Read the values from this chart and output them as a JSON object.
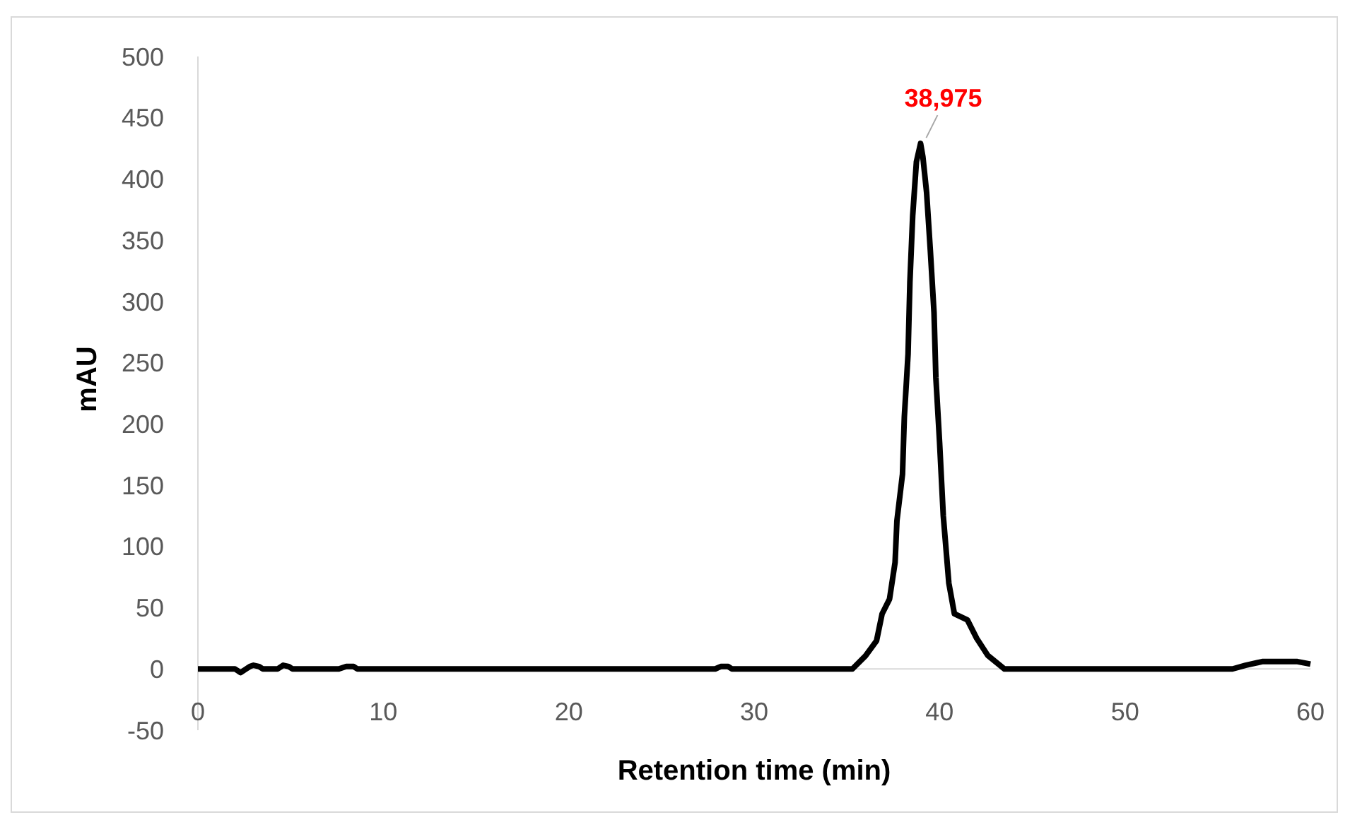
{
  "chart_data": {
    "type": "line",
    "xlabel": "Retention time (min)",
    "ylabel": "mAU",
    "xlim": [
      0,
      60
    ],
    "xticks": [
      0,
      10,
      20,
      30,
      40,
      50,
      60
    ],
    "ylim": [
      -50,
      500
    ],
    "yticks": [
      -50,
      0,
      50,
      100,
      150,
      200,
      250,
      300,
      350,
      400,
      450,
      500
    ],
    "grid": false,
    "marker": "none",
    "line_style": "solid",
    "annotations": [
      {
        "text": "38,975",
        "x": 38.975,
        "y": 429
      }
    ],
    "series": [
      {
        "color": "#000000",
        "x": [
          0,
          2.0,
          2.3,
          2.6,
          2.8,
          3.0,
          3.3,
          3.5,
          4.3,
          4.6,
          4.9,
          5.1,
          7.6,
          8.0,
          8.4,
          8.6,
          27.9,
          28.2,
          28.6,
          28.8,
          35.3,
          36.0,
          36.6,
          36.9,
          37.3,
          37.6,
          37.7,
          38.0,
          38.1,
          38.3,
          38.4,
          38.55,
          38.75,
          38.975,
          39.1,
          39.3,
          39.5,
          39.7,
          39.8,
          40.0,
          40.2,
          40.5,
          40.8,
          41.5,
          42.0,
          42.6,
          43.5,
          55.8,
          56.5,
          57.4,
          59.3,
          60
        ],
        "values": [
          0,
          0,
          -3,
          0,
          2,
          3,
          2,
          0,
          0,
          3,
          2,
          0,
          0,
          2,
          2,
          0,
          0,
          2,
          2,
          0,
          0,
          10.6,
          23,
          45,
          57,
          87,
          121,
          159,
          206,
          257,
          316,
          370,
          414,
          429,
          418,
          389,
          342,
          291,
          238,
          185,
          125,
          70,
          45,
          40,
          25,
          11,
          0,
          0,
          3,
          6,
          6,
          4
        ]
      }
    ]
  }
}
